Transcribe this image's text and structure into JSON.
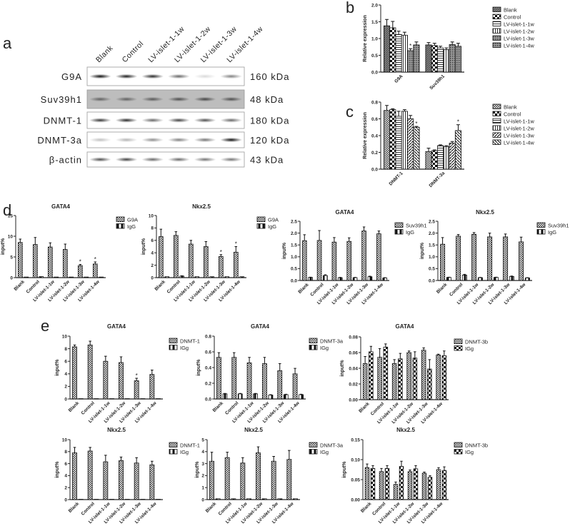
{
  "panel_labels": {
    "a": "a",
    "b": "b",
    "c": "c",
    "d": "d",
    "e": "e"
  },
  "blot": {
    "lanes": [
      "Blank",
      "Control",
      "LV-islet-1-1w",
      "LV-islet-1-2w",
      "LV-islet-1-3w",
      "LV-islet-1-4w"
    ],
    "rows": [
      {
        "label": "G9A",
        "size": "160 kDa",
        "background": "#ffffff",
        "intensity": [
          0.95,
          0.9,
          0.85,
          0.6,
          0.15,
          0.5
        ]
      },
      {
        "label": "Suv39h1",
        "size": "48 kDa",
        "background": "#bdbdbd",
        "intensity": [
          0.5,
          0.5,
          0.55,
          0.6,
          0.65,
          0.6
        ]
      },
      {
        "label": "DNMT-1",
        "size": "180 kDa",
        "background": "#ffffff",
        "intensity": [
          0.8,
          0.85,
          0.6,
          0.75,
          0.7,
          0.6
        ]
      },
      {
        "label": "DNMT-3a",
        "size": "120 kDa",
        "background": "#ffffff",
        "intensity": [
          0.25,
          0.3,
          0.45,
          0.5,
          0.55,
          0.95
        ]
      },
      {
        "label": "β-actin",
        "size": "43 kDa",
        "background": "#ffffff",
        "intensity": [
          0.7,
          0.75,
          0.6,
          0.6,
          0.55,
          0.55
        ]
      }
    ]
  },
  "chart_data": [
    {
      "panel": "b",
      "type": "bar",
      "title": "",
      "ylabel": "Relative expression",
      "ylim": [
        0,
        2.0
      ],
      "ticks": [
        0,
        0.5,
        1.0,
        1.5,
        2.0
      ],
      "tick_labels": [
        "0.0",
        "0.5",
        "1.0",
        "1.5",
        "2.0"
      ],
      "categories": [
        "G9A",
        "Suv39h1"
      ],
      "series": [
        {
          "name": "Blank",
          "pattern": "dark-diag",
          "values": [
            1.38,
            0.81
          ],
          "errors": [
            0.19,
            0.07
          ]
        },
        {
          "name": "Control",
          "pattern": "checker",
          "values": [
            1.32,
            0.79
          ],
          "errors": [
            0.19,
            0.07
          ]
        },
        {
          "name": "LV-islet-1-1w",
          "pattern": "hlines",
          "values": [
            1.12,
            0.72
          ],
          "errors": [
            0.1,
            0.05
          ]
        },
        {
          "name": "LV-islet-1-2w",
          "pattern": "vlines",
          "values": [
            1.1,
            0.67
          ],
          "errors": [
            0.09,
            0.05
          ]
        },
        {
          "name": "LV-islet-1-3w",
          "pattern": "dark-dots",
          "values": [
            0.64,
            0.82
          ],
          "errors": [
            0.06,
            0.08
          ]
        },
        {
          "name": "LV-islet-1-4w",
          "pattern": "dark-dots",
          "values": [
            0.81,
            0.77
          ],
          "errors": [
            0.09,
            0.09
          ]
        }
      ],
      "significant": [
        [
          4,
          0
        ]
      ],
      "legend": "right",
      "grid": false
    },
    {
      "panel": "c",
      "type": "bar",
      "title": "",
      "ylabel": "Relative expression",
      "ylim": [
        0,
        0.8
      ],
      "ticks": [
        0,
        0.2,
        0.4,
        0.6,
        0.8
      ],
      "tick_labels": [
        "0.0",
        "0.2",
        "0.4",
        "0.6",
        "0.8"
      ],
      "categories": [
        "DNMT-1",
        "DNMT-3a"
      ],
      "series": [
        {
          "name": "Blank",
          "pattern": "dots",
          "values": [
            0.7,
            0.21
          ],
          "errors": [
            0.06,
            0.04
          ]
        },
        {
          "name": "Control",
          "pattern": "checker",
          "values": [
            0.71,
            0.22
          ],
          "errors": [
            0.01,
            0.01
          ]
        },
        {
          "name": "LV-islet-1-1w",
          "pattern": "hlines",
          "values": [
            0.63,
            0.28
          ],
          "errors": [
            0.06,
            0.01
          ]
        },
        {
          "name": "LV-islet-1-2w",
          "pattern": "vlines",
          "values": [
            0.69,
            0.27
          ],
          "errors": [
            0.02,
            0.01
          ]
        },
        {
          "name": "LV-islet-1-3w",
          "pattern": "diag",
          "values": [
            0.6,
            0.31
          ],
          "errors": [
            0.04,
            0.02
          ]
        },
        {
          "name": "LV-islet-1-4w",
          "pattern": "antidiag",
          "values": [
            0.5,
            0.46
          ],
          "errors": [
            0.01,
            0.07
          ]
        }
      ],
      "significant": [
        [
          5,
          0
        ],
        [
          5,
          1
        ]
      ],
      "legend": "right",
      "grid": false
    },
    {
      "panel": "d",
      "type": "bar",
      "title": "GATA4",
      "ylabel": "input%",
      "ylim": [
        0,
        15
      ],
      "ticks": [
        0,
        5,
        10,
        15
      ],
      "tick_labels": [
        "0",
        "5",
        "10",
        "15"
      ],
      "categories": [
        "Blank",
        "Control",
        "LV-islet-1-1w",
        "LV-islet-1-2w",
        "LV-islet-1-3w",
        "LV-islet-1-4w"
      ],
      "series": [
        {
          "name": "G9A",
          "pattern": "dots",
          "values": [
            8.5,
            8.0,
            7.4,
            6.8,
            2.9,
            3.3
          ],
          "errors": [
            0.8,
            1.7,
            1.0,
            1.3,
            0.3,
            0.5
          ]
        },
        {
          "name": "IgG",
          "pattern": "igg",
          "values": [
            0.15,
            0.25,
            0.15,
            0.15,
            0.15,
            0.15
          ],
          "errors": [
            0,
            0,
            0,
            0,
            0,
            0
          ]
        }
      ],
      "significant": [
        [
          0,
          4
        ],
        [
          0,
          5
        ]
      ],
      "legend": "right",
      "grid": false
    },
    {
      "panel": "d",
      "type": "bar",
      "title": "Nkx2.5",
      "ylabel": "input%",
      "ylim": [
        0,
        10
      ],
      "ticks": [
        0,
        2,
        4,
        6,
        8,
        10
      ],
      "tick_labels": [
        "0",
        "2",
        "4",
        "6",
        "8",
        "10"
      ],
      "categories": [
        "Blank",
        "Control",
        "LV-islet-1-1w",
        "LV-islet-1-2w",
        "LV-islet-1-3w",
        "LV-islet-1-4w"
      ],
      "series": [
        {
          "name": "G9A",
          "pattern": "dots",
          "values": [
            6.6,
            6.8,
            5.4,
            5.0,
            3.4,
            4.1
          ],
          "errors": [
            1.2,
            0.6,
            0.6,
            0.8,
            0.3,
            0.9
          ]
        },
        {
          "name": "IgG",
          "pattern": "igg",
          "values": [
            0.15,
            0.25,
            0.15,
            0.15,
            0.15,
            0.15
          ],
          "errors": [
            0,
            0.05,
            0,
            0,
            0,
            0
          ]
        }
      ],
      "significant": [
        [
          0,
          4
        ],
        [
          0,
          5
        ]
      ],
      "legend": "right",
      "grid": false
    },
    {
      "panel": "d",
      "type": "bar",
      "title": "GATA4",
      "ylabel": "input%",
      "ylim": [
        0,
        2.5
      ],
      "ticks": [
        0,
        0.5,
        1.0,
        1.5,
        2.0,
        2.5
      ],
      "tick_labels": [
        "0.0",
        "0.5",
        "1.0",
        "1.5",
        "2.0",
        "2.5"
      ],
      "categories": [
        "Blank",
        "Control",
        "LV-islet-1-1w",
        "LV-islet-1-2w",
        "LV-islet-1-3w",
        "LV-islet-1-4w"
      ],
      "series": [
        {
          "name": "Suv39h1",
          "pattern": "dots",
          "values": [
            1.68,
            1.69,
            1.62,
            1.65,
            2.09,
            1.97
          ],
          "errors": [
            0.25,
            0.42,
            0.19,
            0.15,
            0.17,
            0.12
          ]
        },
        {
          "name": "IgG",
          "pattern": "igg",
          "values": [
            0.13,
            0.21,
            0.12,
            0.12,
            0.16,
            0.11
          ],
          "errors": [
            0.01,
            0.03,
            0.01,
            0.01,
            0.02,
            0.01
          ]
        }
      ],
      "significant": [],
      "legend": "right",
      "grid": false
    },
    {
      "panel": "d",
      "type": "bar",
      "title": "Nkx2.5",
      "ylabel": "input%",
      "ylim": [
        0,
        2.5
      ],
      "ticks": [
        0,
        0.5,
        1.0,
        1.5,
        2.0,
        2.5
      ],
      "tick_labels": [
        "0.0",
        "0.5",
        "1.0",
        "1.5",
        "2.0",
        "2.5"
      ],
      "categories": [
        "Blank",
        "Control",
        "LV-islet-1-1w",
        "LV-islet-1-2w",
        "LV-islet-1-3w",
        "LV-islet-1-4w"
      ],
      "series": [
        {
          "name": "Suv39h1",
          "pattern": "dots",
          "values": [
            1.53,
            1.87,
            1.95,
            1.84,
            1.84,
            1.63
          ],
          "errors": [
            0.28,
            0.07,
            0.07,
            0.16,
            0.12,
            0.2
          ]
        },
        {
          "name": "IgG",
          "pattern": "igg",
          "values": [
            0.13,
            0.23,
            0.12,
            0.13,
            0.17,
            0.11
          ],
          "errors": [
            0.01,
            0.03,
            0.01,
            0.01,
            0.02,
            0.01
          ]
        }
      ],
      "significant": [],
      "legend": "right",
      "grid": false
    },
    {
      "panel": "e",
      "type": "bar",
      "title": "GATA4",
      "ylabel": "input%",
      "ylim": [
        0,
        10
      ],
      "ticks": [
        0,
        2,
        4,
        6,
        8,
        10
      ],
      "tick_labels": [
        "0",
        "2",
        "4",
        "6",
        "8",
        "10"
      ],
      "categories": [
        "Blank",
        "Control",
        "LV-islet-1-1w",
        "LV-islet-1-2w",
        "LV-islet-1-3w",
        "LV-islet-1-4w"
      ],
      "series": [
        {
          "name": "DNMT-1",
          "pattern": "dots",
          "values": [
            8.3,
            8.6,
            6.0,
            5.8,
            2.9,
            3.9
          ],
          "errors": [
            0.3,
            0.6,
            0.8,
            0.9,
            0.4,
            0.7
          ]
        },
        {
          "name": "IGg",
          "pattern": "igg",
          "values": [
            0.05,
            0.05,
            0.05,
            0.05,
            0.05,
            0.05
          ],
          "errors": [
            0,
            0,
            0,
            0,
            0,
            0
          ]
        }
      ],
      "significant": [
        [
          0,
          4
        ]
      ],
      "legend": "right",
      "grid": false
    },
    {
      "panel": "e",
      "type": "bar",
      "title": "GATA4",
      "ylabel": "input%",
      "ylim": [
        0,
        0.8
      ],
      "ticks": [
        0,
        0.2,
        0.4,
        0.6,
        0.8
      ],
      "tick_labels": [
        "0.0",
        "0.2",
        "0.4",
        "0.6",
        "0.8"
      ],
      "categories": [
        "Blank",
        "Control",
        "LV-islet-1-1w",
        "LV-islet-1-2w",
        "LV-islet-1-3w",
        "LV-islet-1-4w"
      ],
      "series": [
        {
          "name": "DNMT-3a",
          "pattern": "dots",
          "values": [
            0.53,
            0.53,
            0.46,
            0.45,
            0.36,
            0.32
          ],
          "errors": [
            0.06,
            0.06,
            0.07,
            0.08,
            0.09,
            0.07
          ]
        },
        {
          "name": "IGg",
          "pattern": "igg",
          "values": [
            0.065,
            0.065,
            0.065,
            0.05,
            0.055,
            0.055
          ],
          "errors": [
            0.005,
            0.005,
            0.005,
            0.005,
            0.005,
            0.005
          ]
        }
      ],
      "significant": [],
      "legend": "right",
      "grid": false
    },
    {
      "panel": "e",
      "type": "bar",
      "title": "GATA4",
      "ylabel": "input%",
      "ylim": [
        0,
        0.08
      ],
      "ticks": [
        0,
        0.02,
        0.04,
        0.06,
        0.08
      ],
      "tick_labels": [
        "0.00",
        "0.02",
        "0.04",
        "0.06",
        "0.08"
      ],
      "categories": [
        "Blank",
        "Control",
        "LV-islet-1-1w",
        "LV-islet-1-2w",
        "LV-islet-1-3w",
        "LV-islet-1-4w"
      ],
      "series": [
        {
          "name": "DNMT-3b",
          "pattern": "dots",
          "values": [
            0.046,
            0.054,
            0.046,
            0.06,
            0.063,
            0.057
          ],
          "errors": [
            0.009,
            0.011,
            0.005,
            0.002,
            0.003,
            0.001
          ]
        },
        {
          "name": "IGg",
          "pattern": "checker",
          "values": [
            0.061,
            0.067,
            0.052,
            0.053,
            0.039,
            0.056
          ],
          "errors": [
            0.007,
            0.004,
            0.007,
            0.008,
            0.012,
            0.006
          ]
        }
      ],
      "significant": [],
      "legend": "right",
      "grid": false
    },
    {
      "panel": "e",
      "type": "bar",
      "title": "Nkx2.5",
      "ylabel": "input%",
      "ylim": [
        0,
        10
      ],
      "ticks": [
        0,
        2,
        4,
        6,
        8,
        10
      ],
      "tick_labels": [
        "0",
        "2",
        "4",
        "6",
        "8",
        "10"
      ],
      "categories": [
        "Blank",
        "Control",
        "LV-islet-1-1w",
        "LV-islet-1-2w",
        "LV-islet-1-3w",
        "LV-islet-1-4w"
      ],
      "series": [
        {
          "name": "DNMT-1",
          "pattern": "dots",
          "values": [
            7.8,
            8.1,
            6.3,
            6.5,
            6.1,
            5.8
          ],
          "errors": [
            0.9,
            0.6,
            1.1,
            0.6,
            0.9,
            0.6
          ]
        },
        {
          "name": "IGg",
          "pattern": "igg",
          "values": [
            0.05,
            0.05,
            0.05,
            0.05,
            0.05,
            0.05
          ],
          "errors": [
            0,
            0,
            0,
            0,
            0,
            0
          ]
        }
      ],
      "significant": [],
      "legend": "right",
      "grid": false
    },
    {
      "panel": "e",
      "type": "bar",
      "title": "Nkx2.5",
      "ylabel": "input%",
      "ylim": [
        0,
        5
      ],
      "ticks": [
        0,
        1,
        2,
        3,
        4,
        5
      ],
      "tick_labels": [
        "0",
        "1",
        "2",
        "3",
        "4",
        "5"
      ],
      "categories": [
        "Blank",
        "Control",
        "LV-islet-1-1w",
        "LV-islet-1-2w",
        "LV-islet-1-3w",
        "LV-islet-1-4w"
      ],
      "series": [
        {
          "name": "DNMT-3a",
          "pattern": "dots",
          "values": [
            3.2,
            3.5,
            3.05,
            3.9,
            3.2,
            3.35
          ],
          "errors": [
            0.75,
            0.45,
            0.45,
            0.5,
            0.4,
            0.75
          ]
        },
        {
          "name": "IGg",
          "pattern": "igg",
          "values": [
            0.07,
            0.07,
            0.07,
            0.07,
            0.07,
            0.07
          ],
          "errors": [
            0,
            0,
            0,
            0,
            0,
            0
          ]
        }
      ],
      "significant": [],
      "legend": "right",
      "grid": false
    },
    {
      "panel": "e",
      "type": "bar",
      "title": "Nkx2.5",
      "ylabel": "input%",
      "ylim": [
        0,
        0.15
      ],
      "ticks": [
        0,
        0.05,
        0.1,
        0.15
      ],
      "tick_labels": [
        "0.00",
        "0.05",
        "0.10",
        "0.15"
      ],
      "categories": [
        "Blank",
        "Control",
        "LV-islet-1-1w",
        "LV-islet-1-2w",
        "LV-islet-1-3w",
        "LV-islet-1-4w"
      ],
      "series": [
        {
          "name": "DNMT-3b",
          "pattern": "dots",
          "values": [
            0.08,
            0.07,
            0.038,
            0.07,
            0.066,
            0.075
          ],
          "errors": [
            0.009,
            0.008,
            0.006,
            0.004,
            0.003,
            0.005
          ]
        },
        {
          "name": "IGg",
          "pattern": "checker",
          "values": [
            0.078,
            0.078,
            0.083,
            0.077,
            0.056,
            0.073
          ],
          "errors": [
            0.007,
            0.007,
            0.013,
            0.008,
            0.004,
            0.009
          ]
        }
      ],
      "significant": [],
      "legend": "right",
      "grid": false
    }
  ]
}
